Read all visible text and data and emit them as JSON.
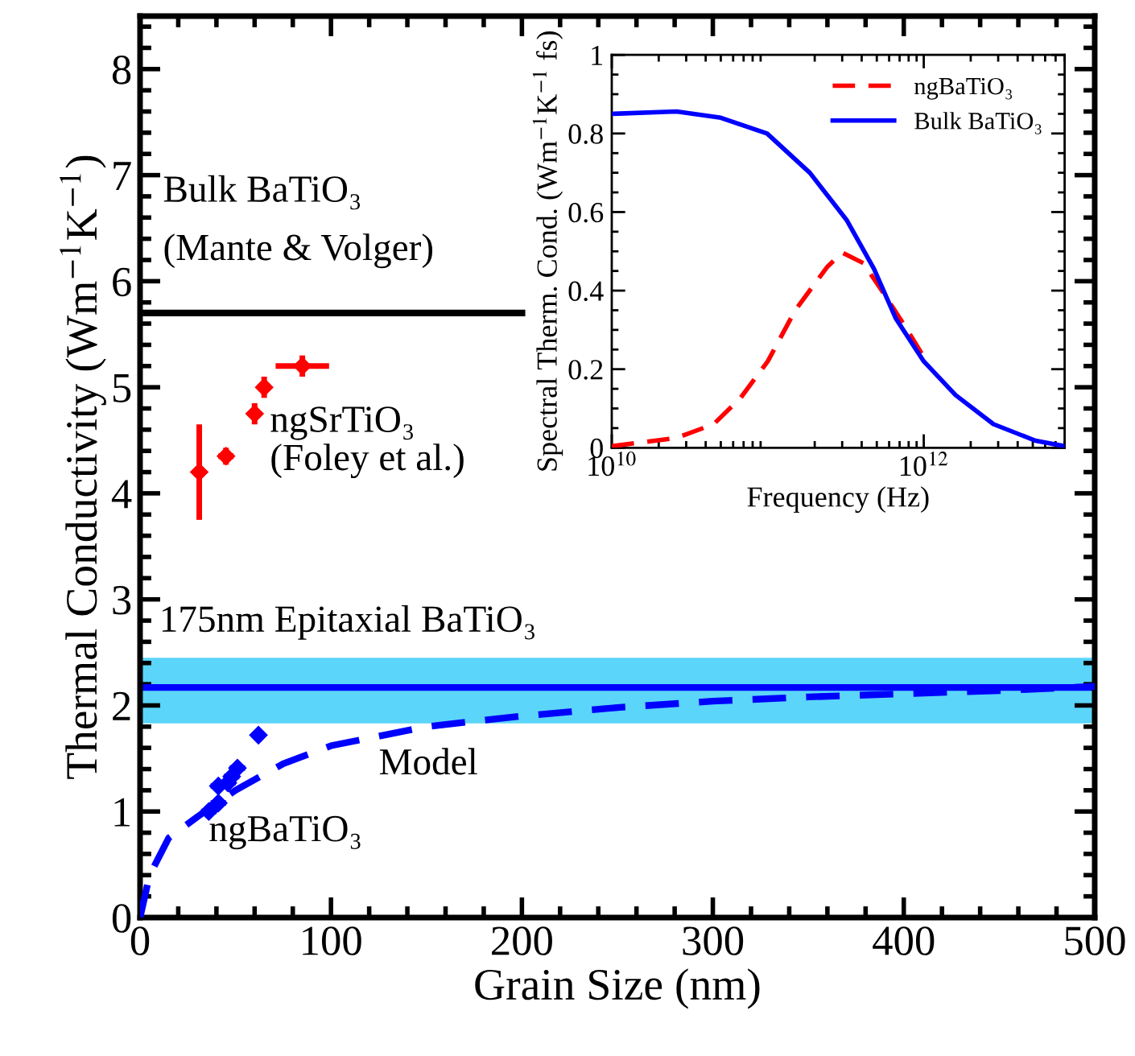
{
  "chart_data": [
    {
      "type": "line",
      "xlabel": "Grain Size (nm)",
      "ylabel": "Thermal Conductivity (Wm$^{−1}$K$^{−1}$)",
      "xlim": [
        0,
        500
      ],
      "ylim": [
        0,
        8.5
      ],
      "xticks": [
        0,
        100,
        200,
        300,
        400,
        500
      ],
      "yticks": [
        0,
        1,
        2,
        3,
        4,
        5,
        6,
        7,
        8
      ],
      "grid": false,
      "series": [
        {
          "type": "line",
          "color": "#000000",
          "line_style": "solid",
          "x": [
            0,
            200
          ],
          "values": [
            5.7,
            5.7
          ]
        },
        {
          "type": "scatter",
          "color": "#ff0000",
          "marker": "diamond",
          "x": [
            31,
            45,
            60,
            65,
            85
          ],
          "values": [
            4.2,
            4.35,
            4.75,
            5.0,
            5.2
          ],
          "errors": [
            0.45,
            0.08,
            0.1,
            0.1,
            0.1
          ],
          "xerrors": [
            2,
            4,
            3,
            3,
            14
          ]
        },
        {
          "type": "line",
          "color": "#0000ff",
          "line_style": "dashed",
          "x": [
            0,
            5,
            15,
            30,
            50,
            75,
            100,
            150,
            200,
            250,
            300,
            350,
            400,
            450,
            500
          ],
          "values": [
            0,
            0.4,
            0.75,
            0.95,
            1.2,
            1.45,
            1.62,
            1.8,
            1.9,
            1.98,
            2.04,
            2.08,
            2.11,
            2.14,
            2.18
          ]
        },
        {
          "type": "scatter",
          "color": "#0000ff",
          "marker": "diamond",
          "x": [
            36,
            41,
            41,
            46,
            48,
            51,
            62
          ],
          "values": [
            1.0,
            1.08,
            1.24,
            1.27,
            1.33,
            1.41,
            1.72
          ],
          "errors": [
            0.05,
            0.05,
            0.05,
            0.05,
            0.05,
            0.05,
            0.05
          ],
          "xerrors": [
            4,
            4,
            4,
            4,
            4,
            4,
            2
          ]
        }
      ],
      "ref_lines": [
        {
          "axis": "y",
          "value": 2.17,
          "label": "175nm Epitaxial BaTiO₃",
          "color": "#0000ff",
          "line_style": "solid"
        }
      ],
      "bands": [
        {
          "axis": "y",
          "from": 1.83,
          "to": 2.45,
          "color": "#5bd5f9"
        }
      ],
      "annotations": [
        "Bulk BaTiO₃",
        "(Mante & Volger)",
        "ngSrTiO₃",
        "(Foley et al.)",
        "Model",
        "ngBaTiO₃"
      ]
    },
    {
      "type": "line",
      "xlabel": "Frequency (Hz)",
      "ylabel": "Spectral Therm. Cond. (Wm$^{−1}$K$^{−1}$ fs)",
      "log": "x",
      "xlim": [
        10000000000.0,
        8000000000000.0
      ],
      "ylim": [
        0,
        1
      ],
      "xticks": [
        {
          "value": 10000000000.0,
          "label": "10$^{10}$"
        },
        {
          "value": 1000000000000.0,
          "label": "10$^{12}$"
        }
      ],
      "yticks": [
        0,
        0.2,
        0.4,
        0.6,
        0.8,
        1
      ],
      "grid": false,
      "legend": "top right",
      "series": [
        {
          "name": "ngBaTiO₃",
          "color": "#ff0000",
          "line_style": "dashed",
          "x": [
            10000000000.0,
            26000000000.0,
            45000000000.0,
            67000000000.0,
            100000000000.0,
            150000000000.0,
            240000000000.0,
            300000000000.0,
            410000000000.0,
            560000000000.0,
            770000000000.0,
            980000000000.0
          ],
          "values": [
            0.004,
            0.025,
            0.06,
            0.127,
            0.22,
            0.35,
            0.46,
            0.497,
            0.47,
            0.39,
            0.305,
            0.237
          ]
        },
        {
          "name": "Bulk BaTiO₃",
          "color": "#0000ff",
          "line_style": "solid",
          "x": [
            10000000000.0,
            26000000000.0,
            50000000000.0,
            99000000000.0,
            186000000000.0,
            320000000000.0,
            480000000000.0,
            660000000000.0,
            1000000000000.0,
            1600000000000.0,
            2800000000000.0,
            5200000000000.0,
            8000000000000.0
          ],
          "values": [
            0.85,
            0.856,
            0.84,
            0.8,
            0.7,
            0.58,
            0.455,
            0.33,
            0.22,
            0.134,
            0.06,
            0.018,
            0.004
          ]
        }
      ]
    }
  ]
}
